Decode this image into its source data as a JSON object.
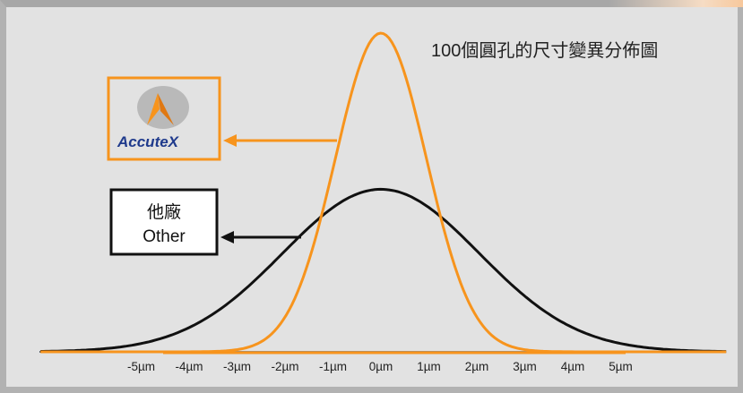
{
  "chart_data": {
    "type": "line",
    "title": "100個圓孔的尺寸變異分佈圖",
    "xlabel": "",
    "ylabel": "",
    "x_unit": "µm",
    "x_ticks": [
      "-5µm",
      "-4µm",
      "-3µm",
      "-2µm",
      "-1µm",
      "0µm",
      "1µm",
      "2µm",
      "3µm",
      "4µm",
      "5µm"
    ],
    "x_tick_values": [
      -5,
      -4,
      -3,
      -2,
      -1,
      0,
      1,
      2,
      3,
      4,
      5
    ],
    "xlim": [
      -7.1,
      7.2
    ],
    "ylim": [
      0,
      1
    ],
    "grid": false,
    "series": [
      {
        "name": "AccuteX",
        "distribution": "normal",
        "mean": 0,
        "std_dev": 0.95,
        "peak": 1.0
      },
      {
        "name": "他廠 Other",
        "distribution": "normal",
        "mean": 0,
        "std_dev": 2.05,
        "peak": 0.51
      }
    ],
    "legend": [
      {
        "label": "AccuteX",
        "placement": "left-upper"
      },
      {
        "label_zh": "他廠",
        "label_en": "Other",
        "placement": "left-middle"
      }
    ]
  },
  "colors": {
    "accutex": "#f7941d",
    "other": "#111111",
    "background": "#e2e2e2",
    "brand_text": "#1f3a8c"
  },
  "logo": {
    "icon": "accutex-logo-icon",
    "text": "AccuteX"
  }
}
